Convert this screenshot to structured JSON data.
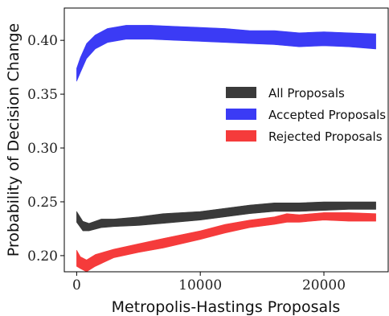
{
  "chart_data": {
    "type": "area",
    "title": "",
    "xlabel": "Metropolis-Hastings Proposals",
    "ylabel": "Probability of Decision Change",
    "xlim": [
      -1000,
      25200
    ],
    "ylim": [
      0.185,
      0.43
    ],
    "x_ticks": [
      0,
      10000,
      20000
    ],
    "x_tick_labels": [
      "0",
      "10000",
      "20000"
    ],
    "y_ticks": [
      0.2,
      0.25,
      0.3,
      0.35,
      0.4
    ],
    "y_tick_labels": [
      "0.20",
      "0.25",
      "0.30",
      "0.35",
      "0.40"
    ],
    "grid": false,
    "legend_position": "center-right",
    "series": [
      {
        "name": "All Proposals",
        "color": "#3a3a3a",
        "x": [
          0,
          500,
          1000,
          2000,
          3000,
          5000,
          7000,
          10000,
          12000,
          14000,
          16000,
          17000,
          18000,
          20000,
          22000,
          24200
        ],
        "lower": [
          0.231,
          0.223,
          0.223,
          0.226,
          0.227,
          0.228,
          0.23,
          0.233,
          0.236,
          0.239,
          0.241,
          0.241,
          0.241,
          0.242,
          0.243,
          0.243
        ],
        "upper": [
          0.241,
          0.232,
          0.23,
          0.234,
          0.234,
          0.236,
          0.239,
          0.241,
          0.244,
          0.247,
          0.249,
          0.249,
          0.249,
          0.25,
          0.25,
          0.25
        ]
      },
      {
        "name": "Accepted Proposals",
        "color": "#3b3bf5",
        "x": [
          0,
          300,
          800,
          1500,
          2500,
          4000,
          6000,
          8000,
          10000,
          12000,
          14000,
          16000,
          18000,
          20000,
          22000,
          24200
        ],
        "lower": [
          0.362,
          0.37,
          0.383,
          0.392,
          0.398,
          0.401,
          0.401,
          0.4,
          0.399,
          0.398,
          0.397,
          0.396,
          0.394,
          0.395,
          0.394,
          0.392
        ],
        "upper": [
          0.374,
          0.384,
          0.397,
          0.405,
          0.411,
          0.414,
          0.414,
          0.413,
          0.412,
          0.411,
          0.409,
          0.409,
          0.407,
          0.408,
          0.407,
          0.406
        ]
      },
      {
        "name": "Rejected Proposals",
        "color": "#f53b3b",
        "x": [
          0,
          300,
          800,
          1500,
          3000,
          5000,
          7000,
          10000,
          12000,
          14000,
          16000,
          17000,
          18000,
          20000,
          22000,
          24200
        ],
        "lower": [
          0.19,
          0.188,
          0.185,
          0.19,
          0.198,
          0.203,
          0.207,
          0.215,
          0.221,
          0.226,
          0.229,
          0.231,
          0.231,
          0.233,
          0.232,
          0.232
        ],
        "upper": [
          0.205,
          0.199,
          0.196,
          0.201,
          0.206,
          0.211,
          0.216,
          0.223,
          0.229,
          0.233,
          0.236,
          0.239,
          0.238,
          0.24,
          0.24,
          0.239
        ]
      }
    ]
  }
}
